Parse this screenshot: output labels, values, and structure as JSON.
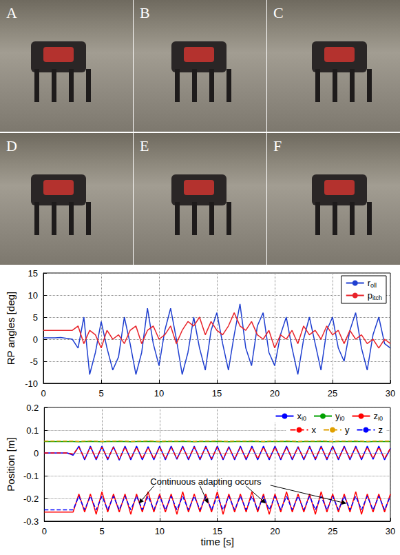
{
  "panels": [
    "A",
    "B",
    "C",
    "D",
    "E",
    "F"
  ],
  "chart_data": [
    {
      "type": "line",
      "ylabel": "RP angles [deg]",
      "x": [
        0,
        0.5,
        1,
        1.5,
        2,
        2.5,
        3,
        3.5,
        4,
        4.5,
        5,
        5.5,
        6,
        6.5,
        7,
        7.5,
        8,
        8.5,
        9,
        9.5,
        10,
        10.5,
        11,
        11.5,
        12,
        12.5,
        13,
        13.5,
        14,
        14.5,
        15,
        15.5,
        16,
        16.5,
        17,
        17.5,
        18,
        18.5,
        19,
        19.5,
        20,
        20.5,
        21,
        21.5,
        22,
        22.5,
        23,
        23.5,
        24,
        24.5,
        25,
        25.5,
        26,
        26.5,
        27,
        27.5,
        28,
        28.5,
        29,
        29.5,
        30
      ],
      "series": [
        {
          "name": "roll",
          "color": "#1f3fd0",
          "line_style": "solid",
          "values": [
            0.3,
            0.3,
            0.3,
            0.4,
            0.2,
            0,
            -2,
            5,
            -8,
            -3,
            4,
            -2,
            -7,
            -4,
            5,
            -1,
            -8,
            -3,
            7,
            -1,
            -6,
            2,
            7,
            0,
            -8,
            -3,
            5,
            -2,
            -7,
            2,
            6,
            -1,
            -7,
            1,
            8,
            -2,
            -6,
            3,
            6,
            -3,
            -6,
            1,
            5,
            -2,
            -8,
            0,
            5,
            -1,
            -7,
            2,
            5,
            -2,
            -5,
            2,
            6,
            -2,
            -7,
            1,
            5,
            -1,
            -2
          ]
        },
        {
          "name": "pitch",
          "color": "#e8232a",
          "line_style": "solid",
          "values": [
            2,
            2,
            2,
            2,
            2,
            2,
            3,
            -1,
            2,
            1,
            -2,
            2,
            0,
            1,
            -1,
            2,
            3,
            -1,
            2,
            3,
            0,
            1,
            3,
            -1,
            2,
            4,
            3,
            5,
            1,
            4,
            2,
            1,
            3,
            6,
            3,
            2,
            4,
            1,
            0,
            2,
            -2,
            1,
            0,
            2,
            -1,
            3,
            1,
            2,
            0,
            3,
            1,
            2,
            -1,
            2,
            0,
            1,
            -1,
            0,
            -2,
            0,
            -1
          ]
        }
      ],
      "xlim": [
        0,
        30
      ],
      "xticks": [
        0,
        5,
        10,
        15,
        20,
        25,
        30
      ],
      "ylim": [
        -10,
        15
      ],
      "yticks": [
        -10,
        -5,
        0,
        5,
        10,
        15
      ],
      "grid": true,
      "legend": "upper right",
      "marker": "none"
    },
    {
      "type": "line",
      "xlabel": "time [s]",
      "ylabel": "Position [m]",
      "annotation": "Continuous adapting occurs",
      "x": [
        0,
        0.5,
        1,
        1.5,
        2,
        2.5,
        3,
        3.5,
        4,
        4.5,
        5,
        5.5,
        6,
        6.5,
        7,
        7.5,
        8,
        8.5,
        9,
        9.5,
        10,
        10.5,
        11,
        11.5,
        12,
        12.5,
        13,
        13.5,
        14,
        14.5,
        15,
        15.5,
        16,
        16.5,
        17,
        17.5,
        18,
        18.5,
        19,
        19.5,
        20,
        20.5,
        21,
        21.5,
        22,
        22.5,
        23,
        23.5,
        24,
        24.5,
        25,
        25.5,
        26,
        26.5,
        27,
        27.5,
        28,
        28.5,
        29,
        29.5,
        30
      ],
      "series": [
        {
          "name": "xi0",
          "color": "#0000ff",
          "line_style": "solid",
          "values": [
            0,
            0,
            0,
            0,
            0,
            -0.01,
            0.03,
            -0.03,
            0.03,
            -0.03,
            0.03,
            -0.03,
            0.028,
            -0.032,
            0.03,
            -0.03,
            0.03,
            -0.03,
            0.028,
            -0.03,
            0.03,
            -0.03,
            0.03,
            -0.028,
            0.03,
            -0.03,
            0.03,
            -0.03,
            0.03,
            -0.03,
            0.03,
            -0.03,
            0.028,
            -0.03,
            0.03,
            -0.03,
            0.03,
            -0.03,
            0.03,
            -0.03,
            0.03,
            -0.03,
            0.03,
            -0.03,
            0.028,
            -0.03,
            0.03,
            -0.03,
            0.03,
            -0.03,
            0.03,
            -0.03,
            0.03,
            -0.03,
            0.03,
            -0.03,
            0.03,
            -0.028,
            0.03,
            -0.03,
            0.02
          ]
        },
        {
          "name": "yi0",
          "color": "#00a000",
          "line_style": "solid",
          "values": [
            0.05,
            0.05,
            0.05,
            0.05,
            0.05,
            0.05,
            0.049,
            0.05,
            0.051,
            0.05,
            0.049,
            0.05,
            0.05,
            0.051,
            0.05,
            0.049,
            0.05,
            0.05,
            0.051,
            0.05,
            0.049,
            0.05,
            0.05,
            0.05,
            0.051,
            0.05,
            0.049,
            0.05,
            0.05,
            0.05,
            0.051,
            0.05,
            0.049,
            0.05,
            0.05,
            0.05,
            0.051,
            0.05,
            0.049,
            0.05,
            0.05,
            0.05,
            0.051,
            0.05,
            0.049,
            0.05,
            0.05,
            0.05,
            0.051,
            0.05,
            0.049,
            0.05,
            0.05,
            0.05,
            0.051,
            0.05,
            0.049,
            0.05,
            0.05,
            0.05,
            0.05
          ]
        },
        {
          "name": "zi0",
          "color": "#ff0000",
          "line_style": "solid",
          "values": [
            -0.26,
            -0.26,
            -0.26,
            -0.26,
            -0.26,
            -0.26,
            -0.18,
            -0.26,
            -0.18,
            -0.27,
            -0.17,
            -0.26,
            -0.18,
            -0.26,
            -0.18,
            -0.27,
            -0.18,
            -0.26,
            -0.17,
            -0.26,
            -0.18,
            -0.26,
            -0.18,
            -0.27,
            -0.17,
            -0.26,
            -0.18,
            -0.26,
            -0.18,
            -0.26,
            -0.17,
            -0.27,
            -0.18,
            -0.26,
            -0.18,
            -0.26,
            -0.17,
            -0.26,
            -0.18,
            -0.27,
            -0.18,
            -0.26,
            -0.17,
            -0.26,
            -0.18,
            -0.26,
            -0.18,
            -0.27,
            -0.17,
            -0.26,
            -0.18,
            -0.26,
            -0.18,
            -0.26,
            -0.17,
            -0.27,
            -0.18,
            -0.26,
            -0.18,
            -0.26,
            -0.18
          ]
        },
        {
          "name": "x",
          "color": "#ff0000",
          "line_style": "dashed",
          "values": [
            0,
            0,
            0,
            0,
            0,
            -0.005,
            0.025,
            -0.025,
            0.025,
            -0.025,
            0.025,
            -0.025,
            0.025,
            -0.027,
            0.025,
            -0.025,
            0.025,
            -0.025,
            0.024,
            -0.025,
            0.025,
            -0.025,
            0.025,
            -0.024,
            0.025,
            -0.025,
            0.025,
            -0.025,
            0.025,
            -0.025,
            0.025,
            -0.025,
            0.024,
            -0.025,
            0.025,
            -0.025,
            0.025,
            -0.025,
            0.025,
            -0.025,
            0.025,
            -0.025,
            0.025,
            -0.025,
            0.024,
            -0.025,
            0.025,
            -0.025,
            0.025,
            -0.025,
            0.025,
            -0.025,
            0.025,
            -0.025,
            0.025,
            -0.025,
            0.025,
            -0.024,
            0.025,
            -0.025,
            0.02
          ]
        },
        {
          "name": "y",
          "color": "#e0a000",
          "line_style": "dashed",
          "values": [
            0.052,
            0.052,
            0.052,
            0.052,
            0.052,
            0.052,
            0.051,
            0.052,
            0.053,
            0.052,
            0.051,
            0.052,
            0.052,
            0.053,
            0.052,
            0.051,
            0.052,
            0.052,
            0.053,
            0.052,
            0.051,
            0.052,
            0.052,
            0.052,
            0.053,
            0.052,
            0.051,
            0.052,
            0.052,
            0.052,
            0.053,
            0.052,
            0.051,
            0.052,
            0.052,
            0.052,
            0.053,
            0.052,
            0.051,
            0.052,
            0.052,
            0.052,
            0.053,
            0.052,
            0.051,
            0.052,
            0.052,
            0.052,
            0.053,
            0.052,
            0.051,
            0.052,
            0.052,
            0.052,
            0.053,
            0.052,
            0.051,
            0.052,
            0.052,
            0.052,
            0.052
          ]
        },
        {
          "name": "z",
          "color": "#0000ff",
          "line_style": "dashed",
          "values": [
            -0.25,
            -0.25,
            -0.25,
            -0.25,
            -0.25,
            -0.25,
            -0.19,
            -0.25,
            -0.19,
            -0.25,
            -0.19,
            -0.25,
            -0.19,
            -0.25,
            -0.19,
            -0.25,
            -0.19,
            -0.25,
            -0.19,
            -0.25,
            -0.19,
            -0.25,
            -0.19,
            -0.25,
            -0.19,
            -0.25,
            -0.19,
            -0.25,
            -0.19,
            -0.25,
            -0.19,
            -0.25,
            -0.19,
            -0.25,
            -0.19,
            -0.25,
            -0.19,
            -0.25,
            -0.19,
            -0.25,
            -0.19,
            -0.25,
            -0.19,
            -0.25,
            -0.19,
            -0.25,
            -0.19,
            -0.25,
            -0.19,
            -0.25,
            -0.19,
            -0.25,
            -0.19,
            -0.25,
            -0.19,
            -0.25,
            -0.19,
            -0.25,
            -0.19,
            -0.25,
            -0.19
          ]
        }
      ],
      "xlim": [
        0,
        30
      ],
      "xticks": [
        0,
        5,
        10,
        15,
        20,
        25,
        30
      ],
      "ylim": [
        -0.3,
        0.2
      ],
      "yticks": [
        -0.3,
        -0.2,
        -0.1,
        0,
        0.1,
        0.2
      ],
      "grid": true,
      "legend": "upper right",
      "marker": "none"
    }
  ]
}
